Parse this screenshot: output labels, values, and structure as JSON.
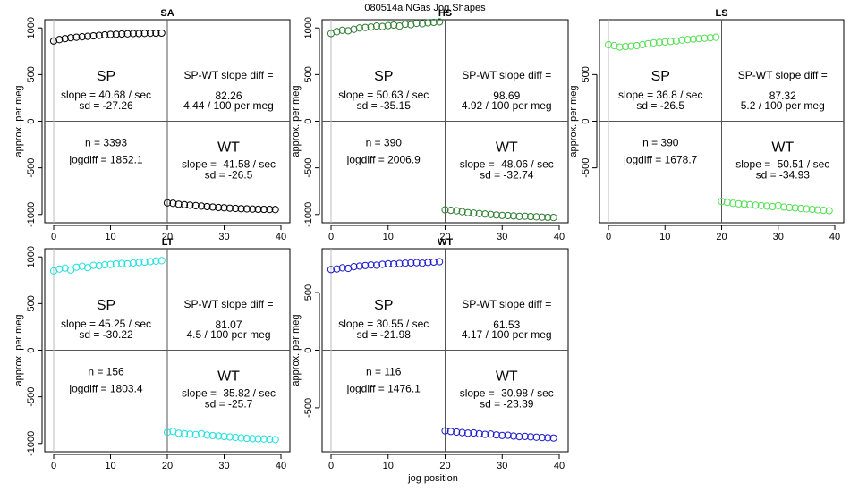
{
  "suptitle": "080514a    NGas Jog Shapes",
  "xlabel": "jog position",
  "ylabel": "approx. per meg",
  "labels": {
    "sp": "SP",
    "wt": "WT",
    "diff_title": "SP-WT slope diff ="
  },
  "chart_data": [
    {
      "type": "scatter",
      "title": "SA",
      "color": "#000000",
      "xlim": [
        0,
        40
      ],
      "ylim": [
        -1050,
        1050
      ],
      "xticks": [
        0,
        10,
        20,
        30,
        40
      ],
      "yticks": [
        -1000,
        -500,
        0,
        500,
        1000
      ],
      "divider_x": 20,
      "sp_slope": "slope = 40.68 / sec",
      "sp_sd": "sd = -27.26",
      "diff_value": "82.26",
      "diff_per": "4.44 / 100 per meg",
      "n": "n = 3393",
      "jogdiff": "jogdiff = 1852.1",
      "wt_slope": "slope = -41.58 / sec",
      "wt_sd": "sd = -26.5",
      "x": [
        0,
        1,
        2,
        3,
        4,
        5,
        6,
        7,
        8,
        9,
        10,
        11,
        12,
        13,
        14,
        15,
        16,
        17,
        18,
        19,
        20,
        21,
        22,
        23,
        24,
        25,
        26,
        27,
        28,
        29,
        30,
        31,
        32,
        33,
        34,
        35,
        36,
        37,
        38,
        39
      ],
      "y": [
        860,
        875,
        885,
        895,
        900,
        905,
        910,
        915,
        920,
        925,
        930,
        932,
        935,
        937,
        940,
        940,
        942,
        943,
        944,
        945,
        -875,
        -880,
        -890,
        -895,
        -900,
        -905,
        -910,
        -915,
        -920,
        -925,
        -928,
        -932,
        -935,
        -938,
        -940,
        -942,
        -944,
        -945,
        -946,
        -947
      ]
    },
    {
      "type": "scatter",
      "title": "HS",
      "color": "#2e7d32",
      "xlim": [
        0,
        40
      ],
      "ylim": [
        -1050,
        1050
      ],
      "xticks": [
        0,
        10,
        20,
        30,
        40
      ],
      "yticks": [
        -1000,
        -500,
        0,
        500,
        1000
      ],
      "divider_x": 20,
      "sp_slope": "slope = 50.63 / sec",
      "sp_sd": "sd = -35.15",
      "diff_value": "98.69",
      "diff_per": "4.92 / 100 per meg",
      "n": "n = 390",
      "jogdiff": "jogdiff = 2006.9",
      "wt_slope": "slope = -48.06 / sec",
      "wt_sd": "sd = -32.74",
      "x": [
        0,
        1,
        2,
        3,
        4,
        5,
        6,
        7,
        8,
        9,
        10,
        11,
        12,
        13,
        14,
        15,
        16,
        17,
        18,
        19,
        20,
        21,
        22,
        23,
        24,
        25,
        26,
        27,
        28,
        29,
        30,
        31,
        32,
        33,
        34,
        35,
        36,
        37,
        38,
        39
      ],
      "y": [
        940,
        960,
        975,
        970,
        985,
        1000,
        1005,
        1010,
        1020,
        1015,
        1025,
        1030,
        1020,
        1040,
        1035,
        1050,
        1045,
        1055,
        1060,
        1065,
        -950,
        -955,
        -960,
        -970,
        -980,
        -985,
        -990,
        -995,
        -1000,
        -1005,
        -1010,
        -1012,
        -1015,
        -1020,
        -1018,
        -1022,
        -1025,
        -1028,
        -1030,
        -1032
      ]
    },
    {
      "type": "scatter",
      "title": "LS",
      "color": "#55e055",
      "xlim": [
        0,
        40
      ],
      "ylim": [
        -1050,
        1050
      ],
      "xticks": [
        0,
        10,
        20,
        30,
        40
      ],
      "yticks": [
        -500,
        0,
        500
      ],
      "divider_x": 20,
      "sp_slope": "slope = 36.8 / sec",
      "sp_sd": "sd = -26.5",
      "diff_value": "87.32",
      "diff_per": "5.2 / 100 per meg",
      "n": "n = 390",
      "jogdiff": "jogdiff = 1678.7",
      "wt_slope": "slope = -50.51 / sec",
      "wt_sd": "sd = -34.93",
      "x": [
        0,
        1,
        2,
        3,
        4,
        5,
        6,
        7,
        8,
        9,
        10,
        11,
        12,
        13,
        14,
        15,
        16,
        17,
        18,
        19,
        20,
        21,
        22,
        23,
        24,
        25,
        26,
        27,
        28,
        29,
        30,
        31,
        32,
        33,
        34,
        35,
        36,
        37,
        38,
        39
      ],
      "y": [
        820,
        810,
        795,
        800,
        805,
        810,
        820,
        830,
        840,
        845,
        850,
        855,
        860,
        870,
        875,
        880,
        885,
        890,
        895,
        900,
        -860,
        -870,
        -880,
        -885,
        -890,
        -895,
        -900,
        -905,
        -910,
        -915,
        -905,
        -920,
        -925,
        -930,
        -935,
        -940,
        -945,
        -950,
        -955,
        -960
      ]
    },
    {
      "type": "scatter",
      "title": "LT",
      "color": "#22e0e0",
      "xlim": [
        0,
        40
      ],
      "ylim": [
        -1050,
        1050
      ],
      "xticks": [
        0,
        10,
        20,
        30,
        40
      ],
      "yticks": [
        -1000,
        -500,
        0,
        500,
        1000
      ],
      "divider_x": 20,
      "sp_slope": "slope = 45.25 / sec",
      "sp_sd": "sd = -30.22",
      "diff_value": "81.07",
      "diff_per": "4.5 / 100 per meg",
      "n": "n = 156",
      "jogdiff": "jogdiff = 1803.4",
      "wt_slope": "slope = -35.82 / sec",
      "wt_sd": "sd = -25.7",
      "x": [
        0,
        1,
        2,
        3,
        4,
        5,
        6,
        7,
        8,
        9,
        10,
        11,
        12,
        13,
        14,
        15,
        16,
        17,
        18,
        19,
        20,
        21,
        22,
        23,
        24,
        25,
        26,
        27,
        28,
        29,
        30,
        31,
        32,
        33,
        34,
        35,
        36,
        37,
        38,
        39
      ],
      "y": [
        850,
        870,
        880,
        860,
        890,
        900,
        885,
        910,
        905,
        915,
        920,
        925,
        930,
        925,
        935,
        940,
        945,
        950,
        955,
        960,
        -880,
        -870,
        -890,
        -895,
        -900,
        -905,
        -895,
        -910,
        -915,
        -920,
        -925,
        -930,
        -935,
        -940,
        -945,
        -948,
        -950,
        -952,
        -955,
        -958
      ]
    },
    {
      "type": "scatter",
      "title": "WT",
      "color": "#1a1acc",
      "xlim": [
        0,
        40
      ],
      "ylim": [
        -850,
        850
      ],
      "xticks": [
        0,
        10,
        20,
        30,
        40
      ],
      "yticks": [
        -500,
        0,
        500
      ],
      "divider_x": 20,
      "sp_slope": "slope = 30.55 / sec",
      "sp_sd": "sd = -21.98",
      "diff_value": "61.53",
      "diff_per": "4.17 / 100 per meg",
      "n": "n = 116",
      "jogdiff": "jogdiff = 1476.1",
      "wt_slope": "slope = -30.98 / sec",
      "wt_sd": "sd = -23.39",
      "x": [
        0,
        1,
        2,
        3,
        4,
        5,
        6,
        7,
        8,
        9,
        10,
        11,
        12,
        13,
        14,
        15,
        16,
        17,
        18,
        19,
        20,
        21,
        22,
        23,
        24,
        25,
        26,
        27,
        28,
        29,
        30,
        31,
        32,
        33,
        34,
        35,
        36,
        37,
        38,
        39
      ],
      "y": [
        700,
        705,
        715,
        710,
        725,
        730,
        735,
        740,
        738,
        745,
        750,
        748,
        752,
        755,
        758,
        760,
        755,
        762,
        765,
        768,
        -700,
        -705,
        -710,
        -715,
        -720,
        -718,
        -725,
        -730,
        -728,
        -735,
        -740,
        -738,
        -745,
        -750,
        -748,
        -752,
        -755,
        -758,
        -760,
        -762
      ]
    }
  ]
}
